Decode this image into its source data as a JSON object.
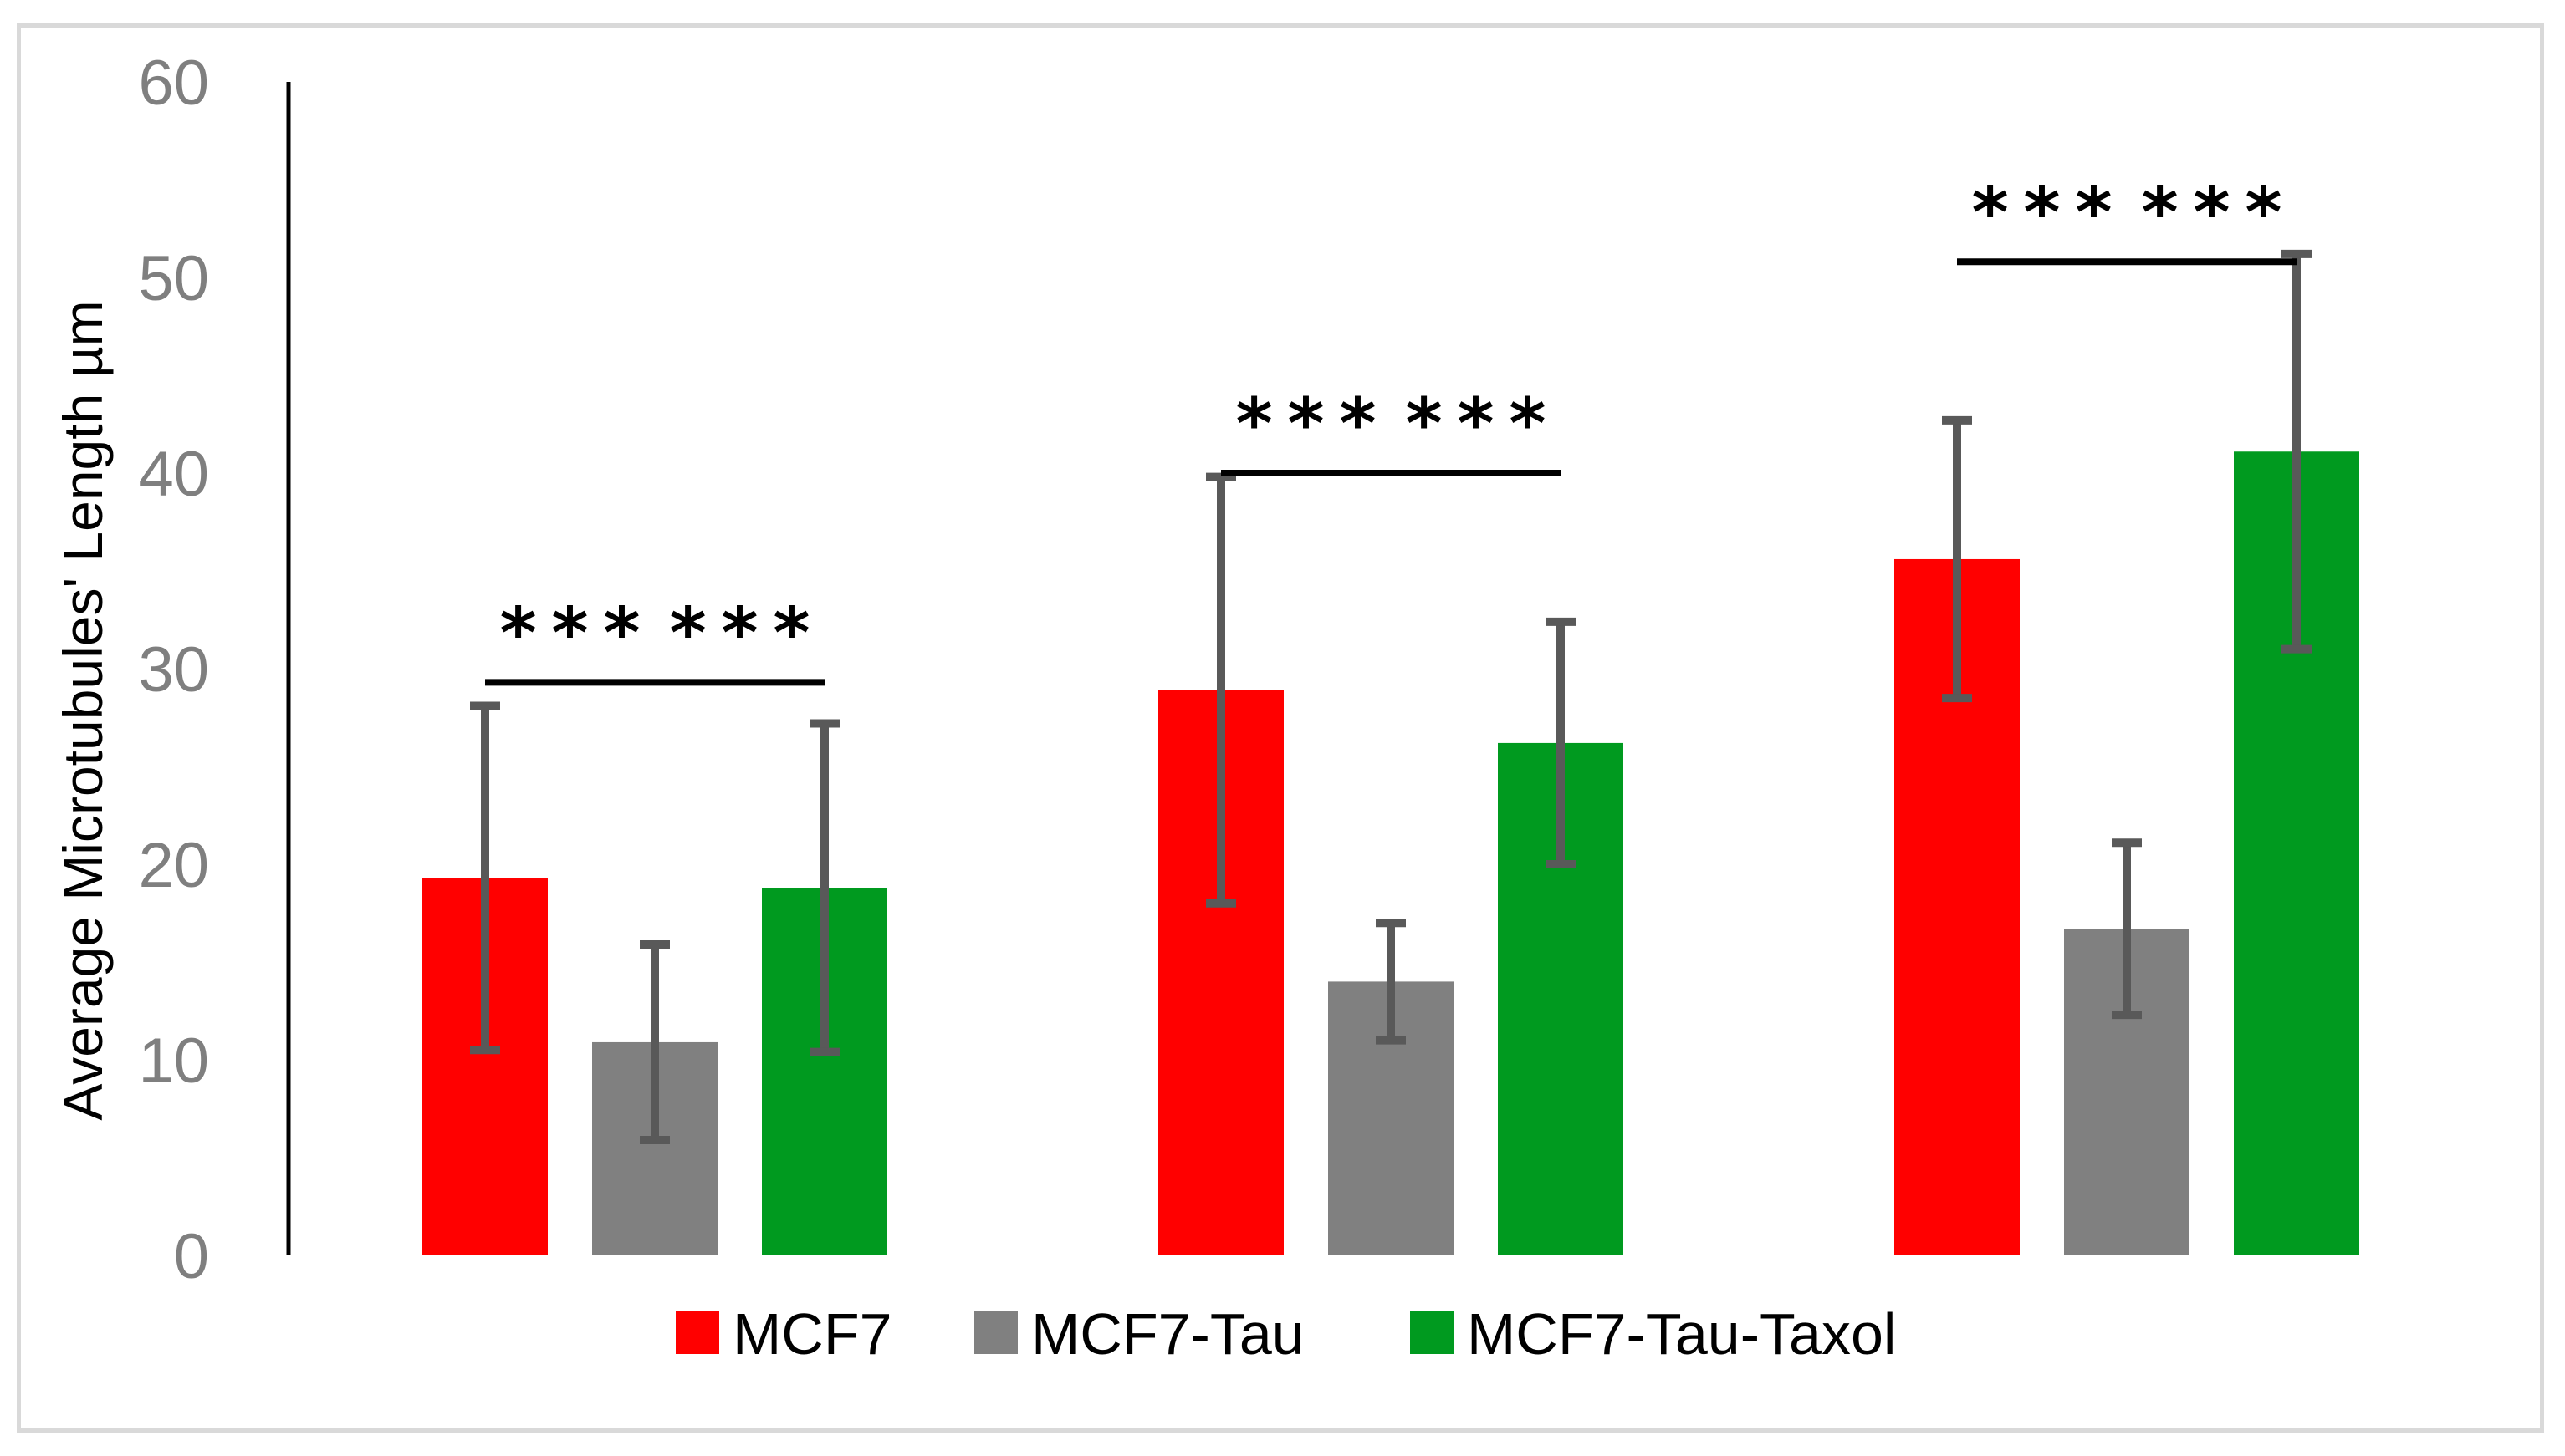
{
  "chart_data": {
    "type": "bar",
    "title": "",
    "xlabel": "",
    "ylabel": "Average Microtubules' Length µm",
    "ylim": [
      0,
      60
    ],
    "yticks": [
      "0",
      "10",
      "20",
      "30",
      "40",
      "50",
      "60"
    ],
    "grid": false,
    "legend_position": "bottom",
    "categories": [
      "",
      "",
      ""
    ],
    "series": [
      {
        "name": "MCF7",
        "color": "#ff0000",
        "values": [
          19.3,
          28.9,
          35.6
        ],
        "error": [
          8.8,
          10.9,
          7.1
        ]
      },
      {
        "name": "MCF7-Tau",
        "color": "#808080",
        "values": [
          10.9,
          14.0,
          16.7
        ],
        "error": [
          5.0,
          3.0,
          4.4
        ]
      },
      {
        "name": "MCF7-Tau-Taxol",
        "color": "#009a1f",
        "values": [
          18.8,
          26.2,
          41.1
        ],
        "error": [
          8.4,
          6.2,
          10.1
        ]
      }
    ],
    "error_bar_color": "#595959",
    "annotations": [
      {
        "group": 0,
        "between": [
          0,
          1
        ],
        "y": 29.3,
        "text": "***"
      },
      {
        "group": 0,
        "between": [
          1,
          2
        ],
        "y": 29.3,
        "text": "***"
      },
      {
        "group": 1,
        "between": [
          0,
          1
        ],
        "y": 40.0,
        "text": "***"
      },
      {
        "group": 1,
        "between": [
          1,
          2
        ],
        "y": 40.0,
        "text": "***"
      },
      {
        "group": 2,
        "between": [
          0,
          1
        ],
        "y": 50.8,
        "text": "***"
      },
      {
        "group": 2,
        "between": [
          1,
          2
        ],
        "y": 50.8,
        "text": "***"
      }
    ]
  }
}
